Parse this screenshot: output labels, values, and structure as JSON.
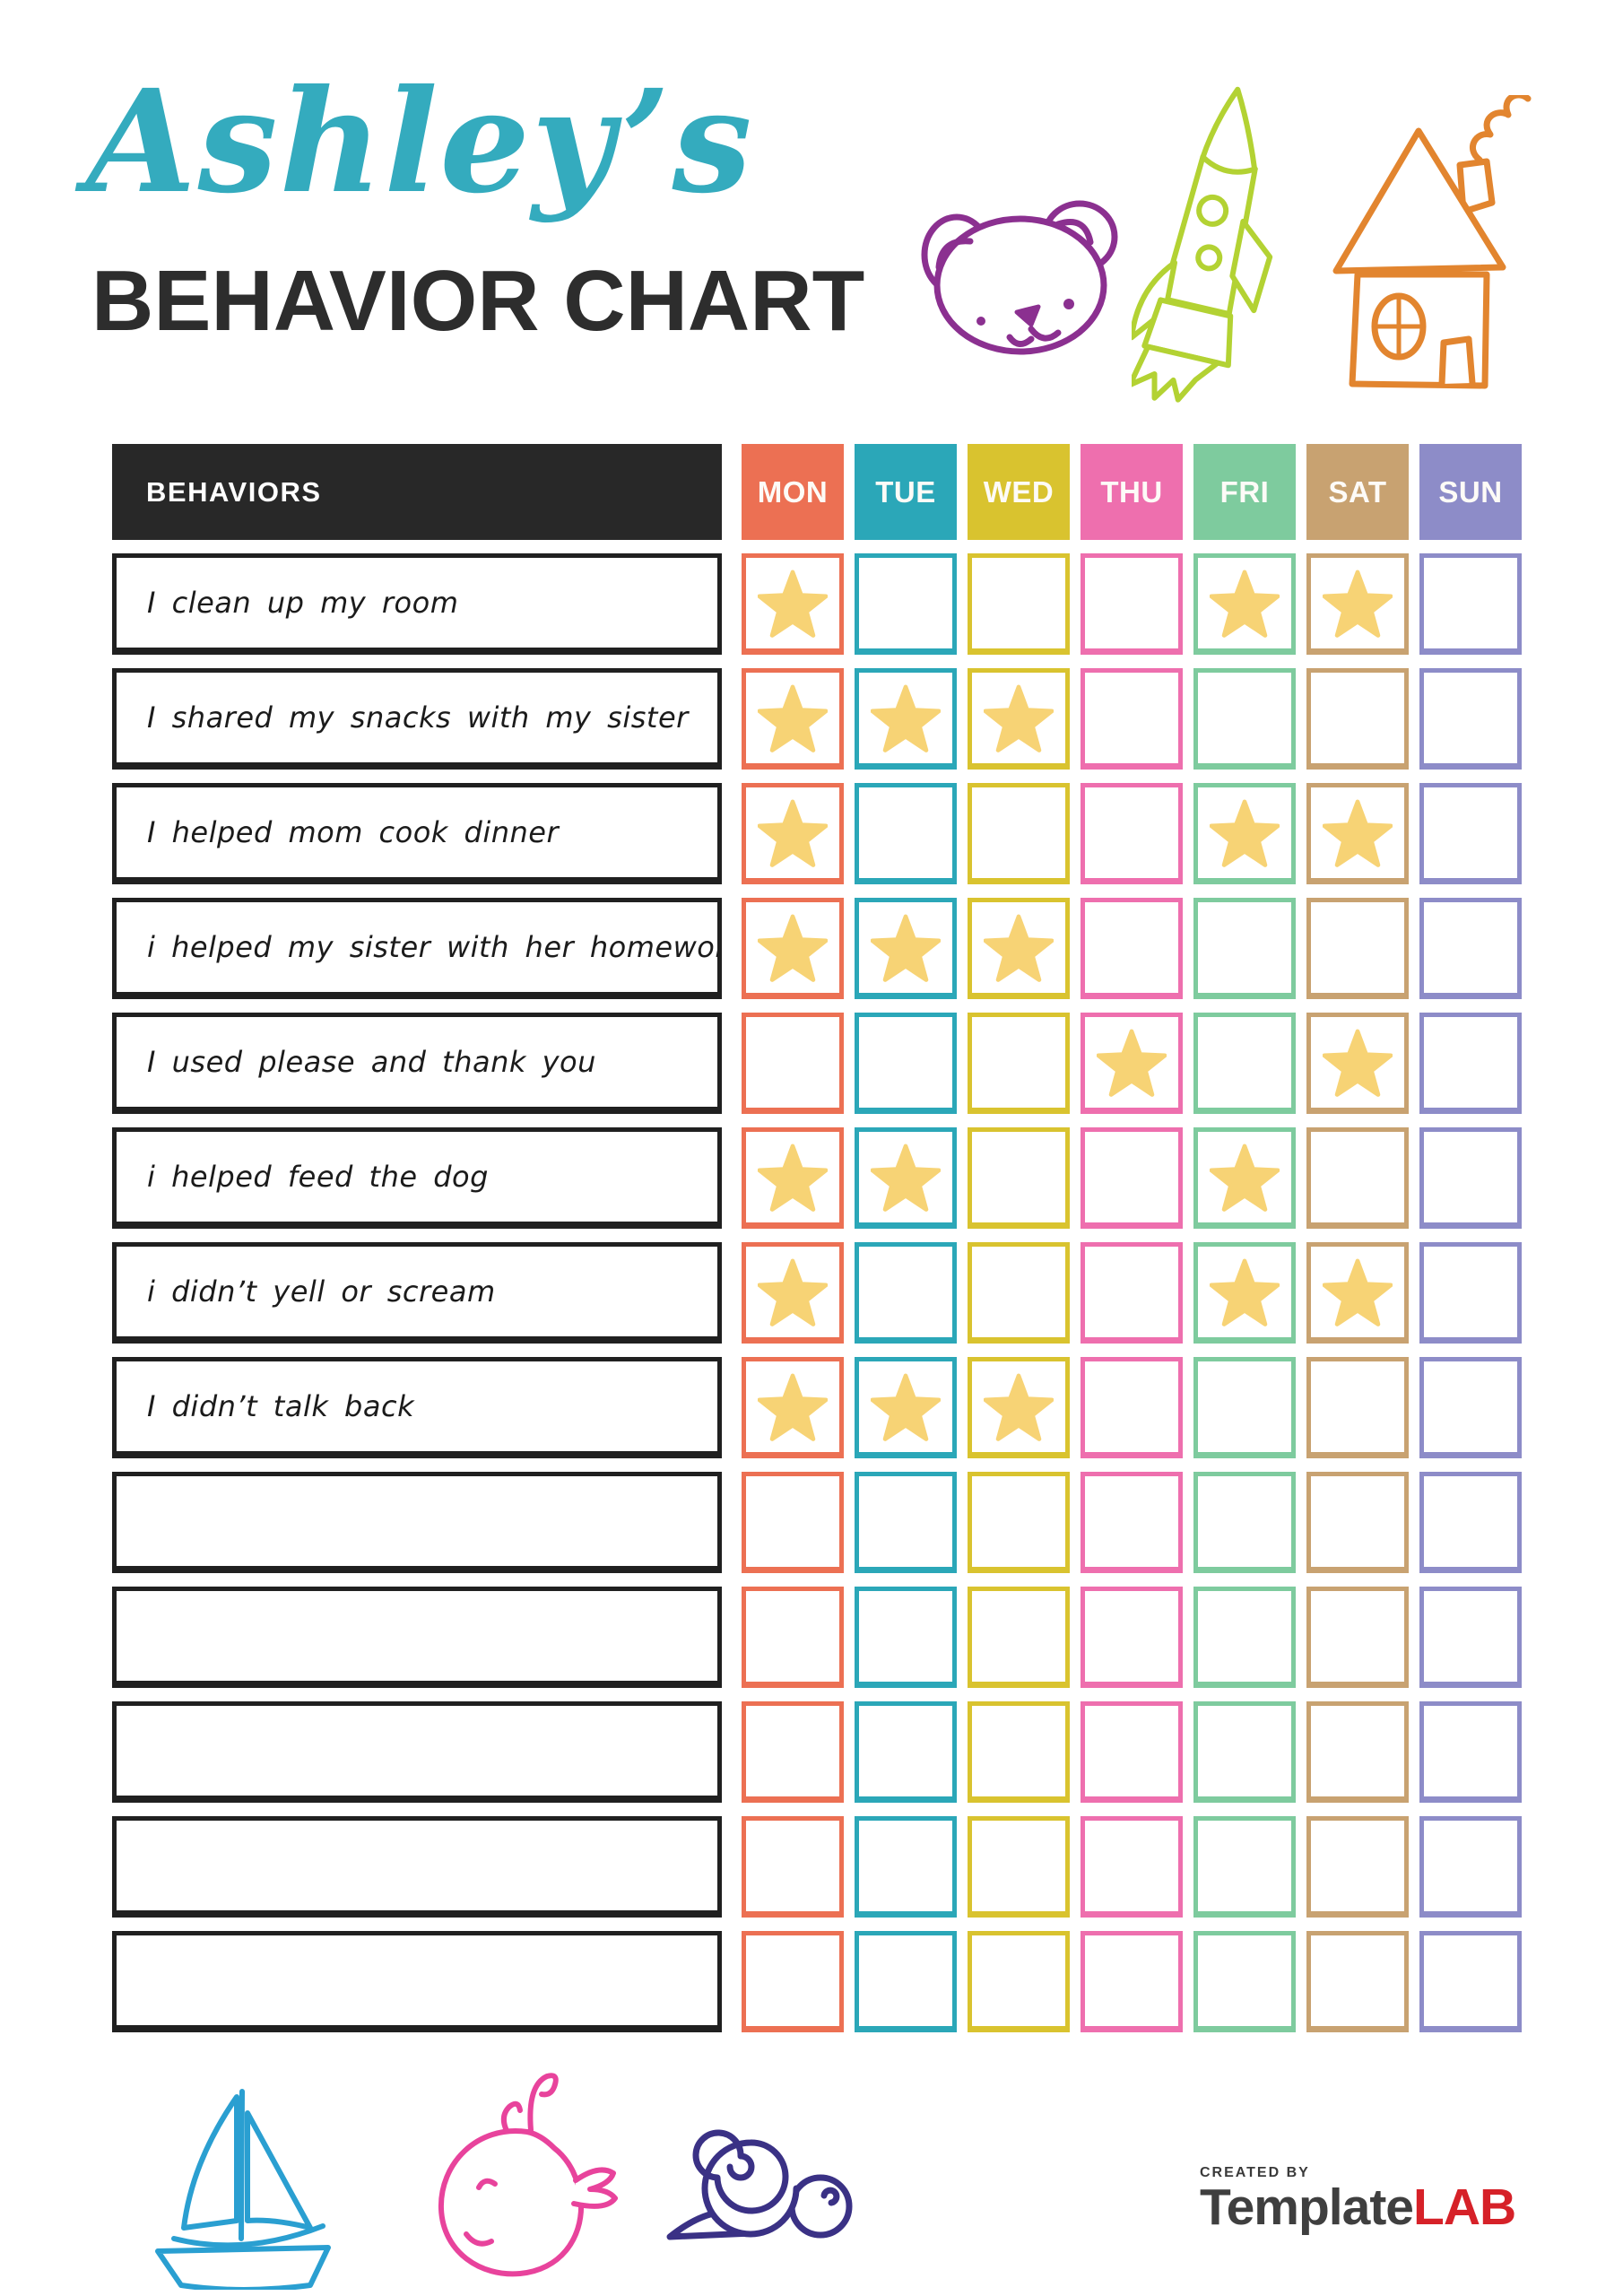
{
  "page": {
    "title_script": "Ashley’s",
    "title_block": "BEHAVIOR CHART"
  },
  "table": {
    "behaviors_header": "BEHAVIORS",
    "days": [
      {
        "label": "MON",
        "color": "#ec7053"
      },
      {
        "label": "TUE",
        "color": "#2ba7b8"
      },
      {
        "label": "WED",
        "color": "#d9c32f"
      },
      {
        "label": "THU",
        "color": "#ee6fae"
      },
      {
        "label": "FRI",
        "color": "#7ecb9e"
      },
      {
        "label": "SAT",
        "color": "#c8a271"
      },
      {
        "label": "SUN",
        "color": "#8d8cc8"
      }
    ],
    "rows": [
      {
        "label": "I clean up my room",
        "stars": [
          "MON",
          "FRI",
          "SAT"
        ]
      },
      {
        "label": "I shared my snacks with my sister",
        "stars": [
          "MON",
          "TUE",
          "WED"
        ]
      },
      {
        "label": "I helped mom cook dinner",
        "stars": [
          "MON",
          "FRI",
          "SAT"
        ]
      },
      {
        "label": "i helped my sister with her homework",
        "stars": [
          "MON",
          "TUE",
          "WED"
        ]
      },
      {
        "label": "I used please and thank you",
        "stars": [
          "THU",
          "SAT"
        ]
      },
      {
        "label": "i helped feed the dog",
        "stars": [
          "MON",
          "TUE",
          "FRI"
        ]
      },
      {
        "label": "i didn’t yell or scream",
        "stars": [
          "MON",
          "FRI",
          "SAT"
        ]
      },
      {
        "label": "I didn’t talk back",
        "stars": [
          "MON",
          "TUE",
          "WED"
        ]
      },
      {
        "label": "",
        "stars": []
      },
      {
        "label": "",
        "stars": []
      },
      {
        "label": "",
        "stars": []
      },
      {
        "label": "",
        "stars": []
      },
      {
        "label": "",
        "stars": []
      }
    ]
  },
  "footer": {
    "created_by": "CREATED BY",
    "brand_primary": "Template",
    "brand_accent": "LAB"
  },
  "colors": {
    "star": "#f7d375",
    "table_header_bg": "#282828",
    "title_script": "#34abbe",
    "title_block": "#2d2d2d",
    "row_border": "#202020",
    "bear_doodle": "#8b3090",
    "rocket_doodle": "#b3d233",
    "house_doodle": "#e2852f",
    "sailboat_doodle": "#2a9fd1",
    "whale_doodle": "#e8439c",
    "snail_doodle": "#3a3185",
    "brand_text": "#3f3f3f",
    "brand_accent": "#d62128"
  },
  "doodles": {
    "top": [
      "teddy-bear",
      "rocket",
      "house"
    ],
    "bottom": [
      "sailboat",
      "whale",
      "snail"
    ]
  }
}
